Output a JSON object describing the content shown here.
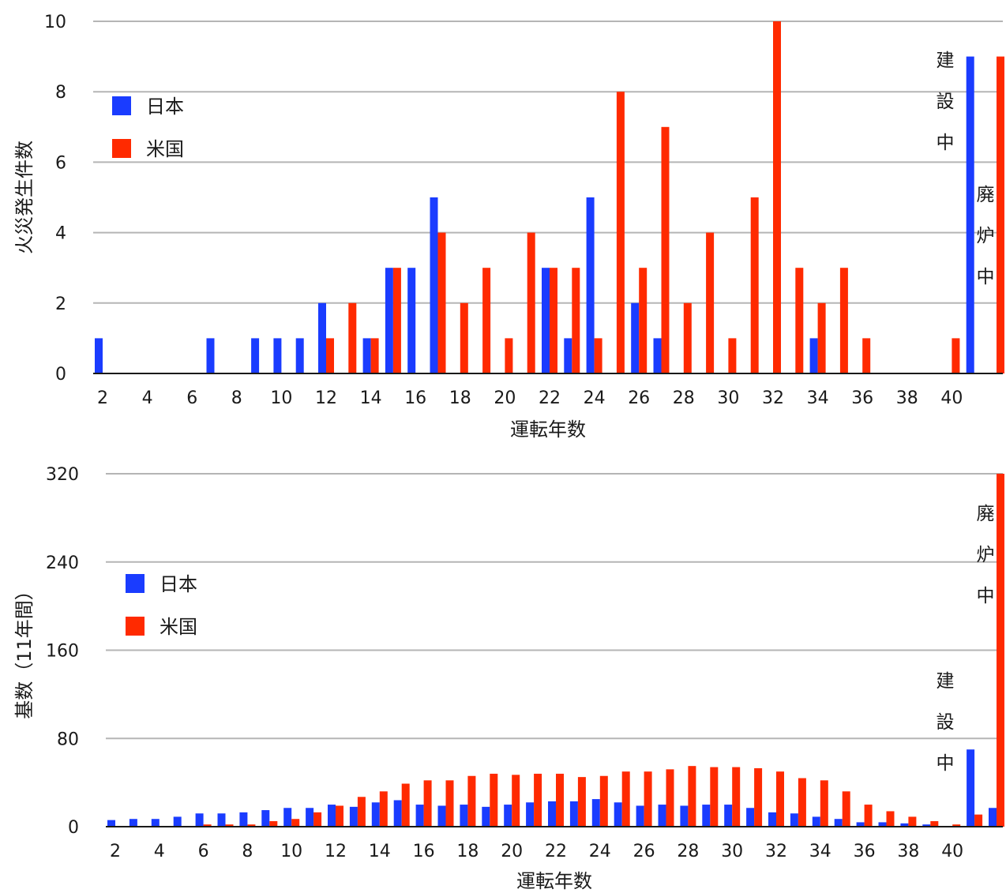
{
  "colors": {
    "japan": "#1a3cff",
    "usa": "#ff2a00",
    "grid": "#b5b5b5",
    "axis": "#1a1a1a"
  },
  "chart_data": [
    {
      "type": "bar",
      "xlabel": "運転年数",
      "ylabel": "火災発生件数",
      "ylim": [
        0,
        10
      ],
      "yticks": [
        0,
        2,
        4,
        6,
        8,
        10
      ],
      "xticks": [
        "2",
        "4",
        "6",
        "8",
        "10",
        "12",
        "14",
        "16",
        "18",
        "20",
        "22",
        "24",
        "26",
        "28",
        "30",
        "32",
        "34",
        "36",
        "38",
        "40"
      ],
      "grid": true,
      "legend_position": "upper-left",
      "x": [
        2,
        3,
        4,
        5,
        6,
        7,
        8,
        9,
        10,
        11,
        12,
        13,
        14,
        15,
        16,
        17,
        18,
        19,
        20,
        21,
        22,
        23,
        24,
        25,
        26,
        27,
        28,
        29,
        30,
        31,
        32,
        33,
        34,
        35,
        36,
        37,
        38,
        39,
        40,
        41,
        42
      ],
      "series": [
        {
          "name": "日本",
          "values": [
            1,
            0,
            0,
            0,
            0,
            1,
            0,
            1,
            1,
            1,
            2,
            0,
            1,
            3,
            3,
            5,
            0,
            0,
            0,
            0,
            3,
            1,
            5,
            0,
            2,
            1,
            0,
            0,
            0,
            0,
            0,
            0,
            1,
            0,
            0,
            0,
            0,
            0,
            0,
            9,
            0
          ]
        },
        {
          "name": "米国",
          "values": [
            0,
            0,
            0,
            0,
            0,
            0,
            0,
            0,
            0,
            0,
            1,
            2,
            1,
            3,
            0,
            4,
            2,
            3,
            1,
            4,
            3,
            3,
            1,
            8,
            3,
            7,
            2,
            4,
            1,
            5,
            10,
            3,
            2,
            3,
            1,
            0,
            0,
            0,
            1,
            0,
            9
          ]
        }
      ],
      "annotations": [
        {
          "text": [
            "建",
            "設",
            "中"
          ]
        },
        {
          "text": [
            "廃",
            "炉",
            "中"
          ]
        }
      ]
    },
    {
      "type": "bar",
      "xlabel": "運転年数",
      "ylabel": "基数（11年間）",
      "ylim": [
        0,
        320
      ],
      "yticks": [
        0,
        80,
        160,
        240,
        320
      ],
      "xticks": [
        "2",
        "4",
        "6",
        "8",
        "10",
        "12",
        "14",
        "16",
        "18",
        "20",
        "22",
        "24",
        "26",
        "28",
        "30",
        "32",
        "34",
        "36",
        "38",
        "40"
      ],
      "grid": true,
      "legend_position": "upper-left",
      "x": [
        2,
        3,
        4,
        5,
        6,
        7,
        8,
        9,
        10,
        11,
        12,
        13,
        14,
        15,
        16,
        17,
        18,
        19,
        20,
        21,
        22,
        23,
        24,
        25,
        26,
        27,
        28,
        29,
        30,
        31,
        32,
        33,
        34,
        35,
        36,
        37,
        38,
        39,
        40,
        41,
        42
      ],
      "series": [
        {
          "name": "日本",
          "values": [
            6,
            7,
            7,
            9,
            12,
            12,
            13,
            15,
            17,
            17,
            20,
            18,
            22,
            24,
            20,
            19,
            20,
            18,
            20,
            22,
            23,
            23,
            25,
            22,
            19,
            20,
            19,
            20,
            20,
            17,
            13,
            12,
            9,
            7,
            4,
            4,
            3,
            2,
            0,
            70,
            17
          ]
        },
        {
          "name": "米国",
          "values": [
            0,
            0,
            0,
            0,
            2,
            2,
            2,
            5,
            7,
            13,
            19,
            27,
            32,
            39,
            42,
            42,
            46,
            48,
            47,
            48,
            48,
            45,
            46,
            50,
            50,
            52,
            55,
            54,
            54,
            53,
            50,
            44,
            42,
            32,
            20,
            14,
            9,
            5,
            2,
            11,
            320
          ]
        }
      ],
      "annotations": [
        {
          "text": [
            "建",
            "設",
            "中"
          ]
        },
        {
          "text": [
            "廃",
            "炉",
            "中"
          ]
        }
      ]
    }
  ]
}
